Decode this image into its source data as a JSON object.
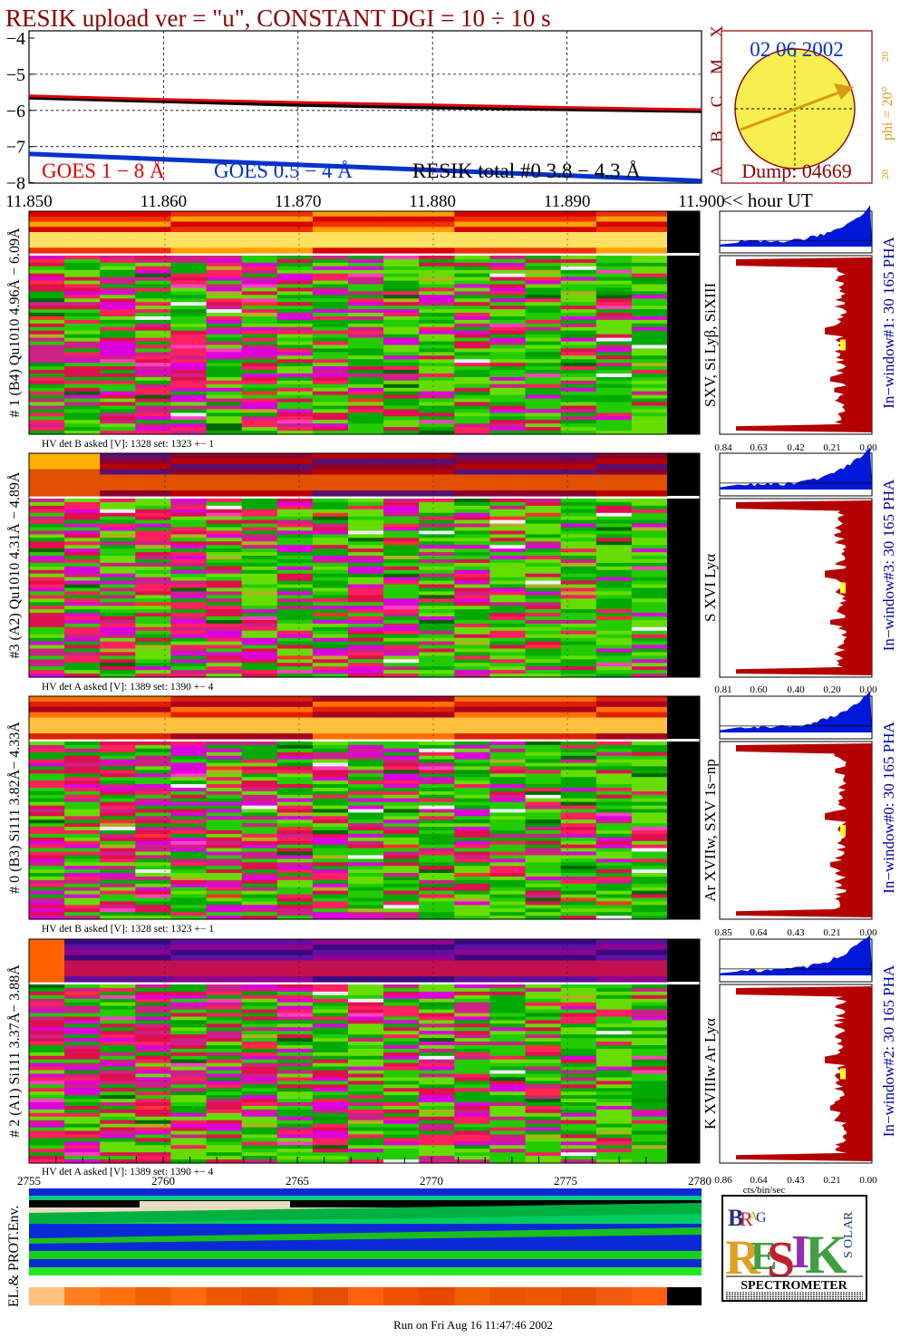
{
  "header": {
    "title": "RESIK upload ver = \"u\", CONSTANT  DGI =  10 ÷  10 s",
    "title_color": "#8b0000"
  },
  "lightcurve": {
    "yticks": [
      "−4",
      "−5",
      "−6",
      "−7",
      "−8"
    ],
    "class_letters": [
      "A",
      "B",
      "C",
      "M",
      "X"
    ],
    "legend": [
      {
        "label": "GOES 1 − 8 Å",
        "color": "#e00000"
      },
      {
        "label": "GOES 0.5 − 4 Å",
        "color": "#0033cc"
      },
      {
        "label": "RESIK total #0  3.8 − 4.3 Å",
        "color": "#000000"
      }
    ],
    "time_axis": {
      "ticks": [
        "11.850",
        "11.860",
        "11.870",
        "11.880",
        "11.890",
        "11.900"
      ],
      "suffix": "<< hour UT"
    }
  },
  "sun": {
    "date": "02 06 2002",
    "dump": "Dump: 04669",
    "phi_label": "phi = 20°",
    "side_ticks": [
      "20",
      "20"
    ]
  },
  "channels": [
    {
      "left_label": "# 1 (B4) Qu1010 4.96Å − 6.09Å",
      "lines": "SXV, Si Lyβ, SiXIII",
      "right_label": "In−window#1:   30 165 PHA",
      "hv": "HV det B asked [V]:  1328 set:  1323  +−    1",
      "xticks": [
        "0.84",
        "0.63",
        "0.42",
        "0.21",
        "0.00"
      ]
    },
    {
      "left_label": "#3 (A2) Qu1010  4.31Å − 4.89Å",
      "lines": "S XVI Lyα",
      "right_label": "In−window#3:   30 165 PHA",
      "hv": "HV det A asked [V]:  1389 set:  1390  +−    4",
      "xticks": [
        "0.81",
        "0.60",
        "0.40",
        "0.20",
        "0.00"
      ]
    },
    {
      "left_label": "# 0 (B3) Si111  3.82Å− 4.33Å",
      "lines": "Ar XVIIw,  SXV 1s−np",
      "right_label": "In−window#0:   30 165 PHA",
      "hv": "HV det B asked [V]:  1328 set:  1323  +−    1",
      "xticks": [
        "0.85",
        "0.64",
        "0.43",
        "0.21",
        "0.00"
      ]
    },
    {
      "left_label": "# 2 (A1) Si111  3.37Å− 3.88Å",
      "lines": "K XVIIIw  Ar Lyα",
      "right_label": "In−window#2:   30 165 PHA",
      "hv": "HV det A asked [V]:  1389 set:  1390  +−    4",
      "xticks": [
        "0.86",
        "0.64",
        "0.43",
        "0.21",
        "0.00"
      ]
    }
  ],
  "frame_axis": {
    "ticks": [
      "2755",
      "2760",
      "2765",
      "2770",
      "2775",
      "2780"
    ],
    "pha_xlabel": "cts/bin/sec"
  },
  "env": {
    "label": "EL.& PROT.Env."
  },
  "logo": {
    "letters": [
      "B",
      "R",
      "A",
      "G",
      "R",
      "E",
      "S",
      "I",
      "K",
      "S",
      "O",
      "L",
      "A",
      "R"
    ],
    "bottom": "SPECTROMETER",
    "colors": [
      "#203080",
      "#c02030",
      "#e0a020",
      "#40a040",
      "#9030b0"
    ]
  },
  "footer": {
    "run": "Run on Fri Aug 16 11:47:46 2002"
  },
  "chart_data": {
    "type": "line",
    "title": "RESIK upload ver = \"u\", CONSTANT  DGI =  10 ÷  10 s",
    "xlabel": "<< hour UT",
    "x": [
      11.85,
      11.86,
      11.87,
      11.88,
      11.89,
      11.9
    ],
    "ylim": [
      -8,
      -4
    ],
    "grid": true,
    "legend_position": "bottom",
    "series": [
      {
        "name": "GOES 1 − 8 Å",
        "values": [
          -5.6,
          -5.7,
          -5.78,
          -5.85,
          -5.92,
          -5.98
        ]
      },
      {
        "name": "GOES 0.5 − 4 Å",
        "values": [
          -7.2,
          -7.35,
          -7.5,
          -7.65,
          -7.8,
          -7.95
        ]
      },
      {
        "name": "RESIK total #0  3.8 − 4.3 Å",
        "values": [
          -5.65,
          -5.75,
          -5.85,
          -5.92,
          -5.97,
          -6.02
        ]
      }
    ]
  }
}
